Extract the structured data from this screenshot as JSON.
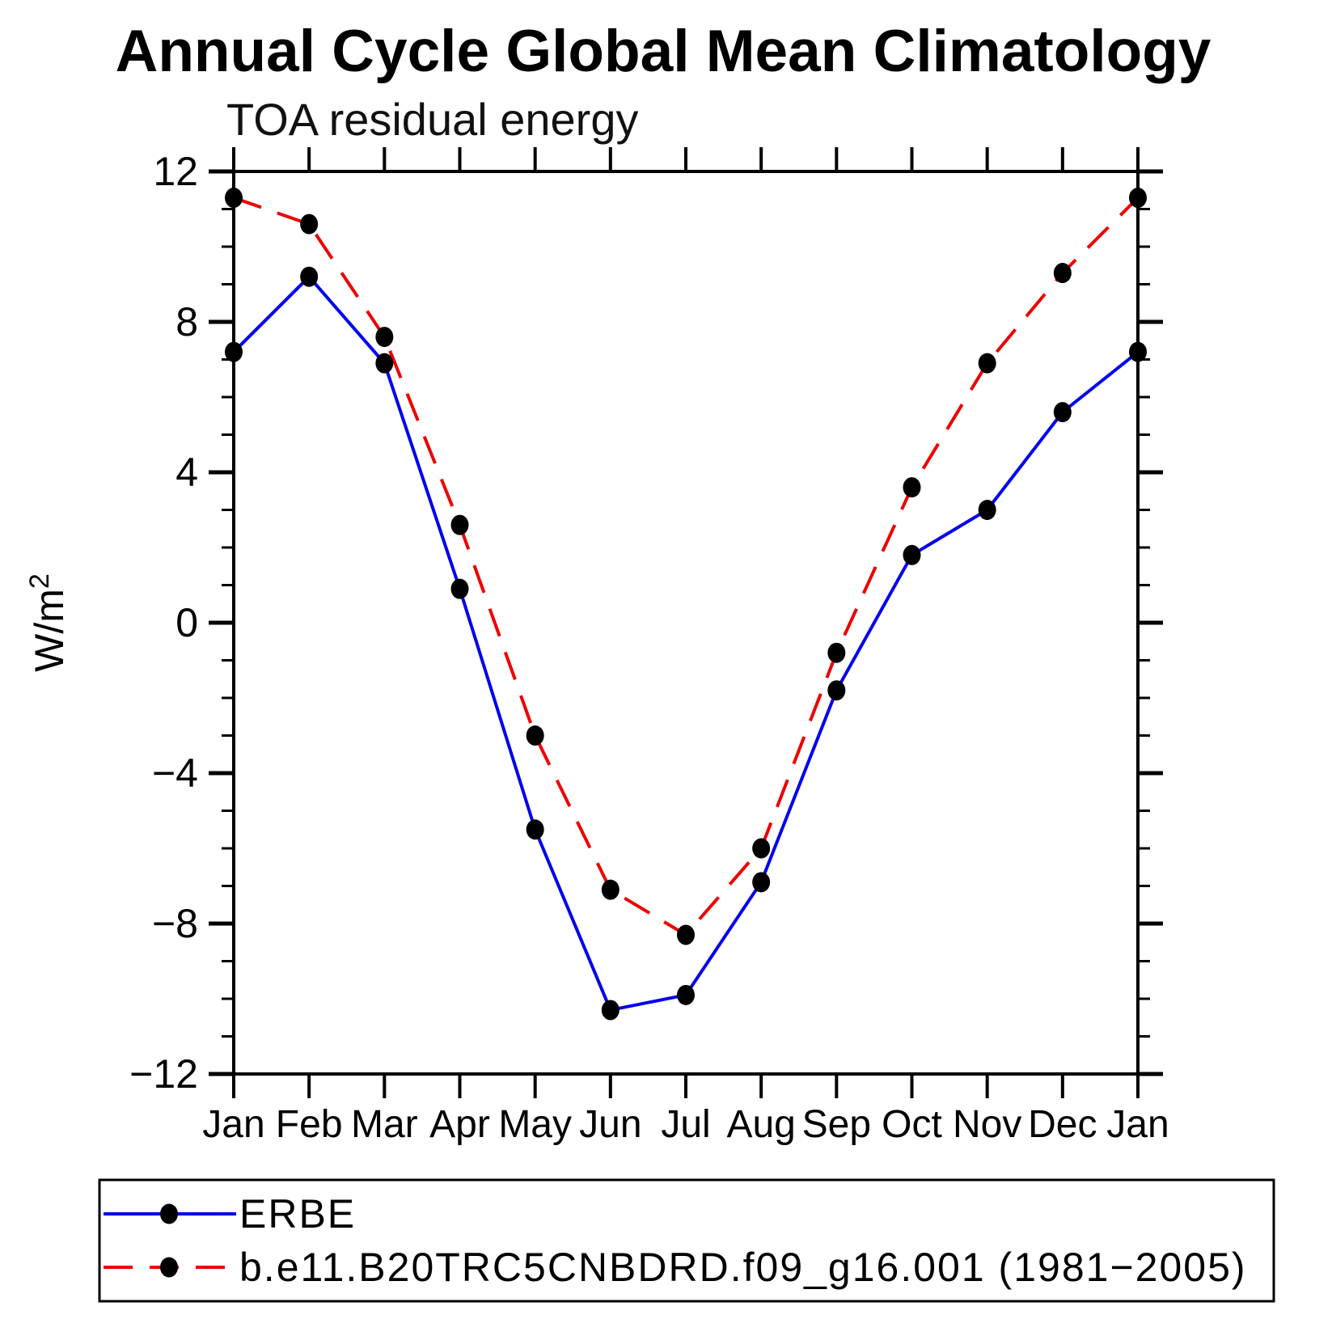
{
  "title": "Annual Cycle Global Mean Climatology",
  "subtitle": "TOA residual energy",
  "colors": {
    "erbe_line": "#0000ee",
    "model_line": "#ee0000",
    "marker": "#000000",
    "axis": "#000000"
  },
  "chart_data": {
    "type": "line",
    "title": "Annual Cycle Global Mean Climatology",
    "subtitle": "TOA residual energy",
    "ylabel": {
      "base": "W/m",
      "sup": "2"
    },
    "x_tick_labels": [
      "Jan",
      "Feb",
      "Mar",
      "Apr",
      "May",
      "Jun",
      "Jul",
      "Aug",
      "Sep",
      "Oct",
      "Nov",
      "Dec",
      "Jan"
    ],
    "y_major_ticks": [
      -12,
      -8,
      -4,
      0,
      4,
      8,
      12
    ],
    "y_minor_tick_interval": 1,
    "ylim": [
      -12,
      12
    ],
    "grid": false,
    "legend_position": "bottom",
    "series": [
      {
        "name": "ERBE",
        "style": "solid",
        "color": "#0000ee",
        "values": [
          7.2,
          9.2,
          6.9,
          0.9,
          -5.5,
          -10.3,
          -9.9,
          -6.9,
          -1.8,
          1.8,
          3.0,
          5.6,
          7.2
        ]
      },
      {
        "name": "b.e11.B20TRC5CNBDRD.f09_g16.001 (1981−2005)",
        "style": "dashed",
        "color": "#ee0000",
        "values": [
          11.3,
          10.6,
          7.6,
          2.6,
          -3.0,
          -7.1,
          -8.3,
          -6.0,
          -0.8,
          3.6,
          6.9,
          9.3,
          11.3
        ]
      }
    ]
  }
}
